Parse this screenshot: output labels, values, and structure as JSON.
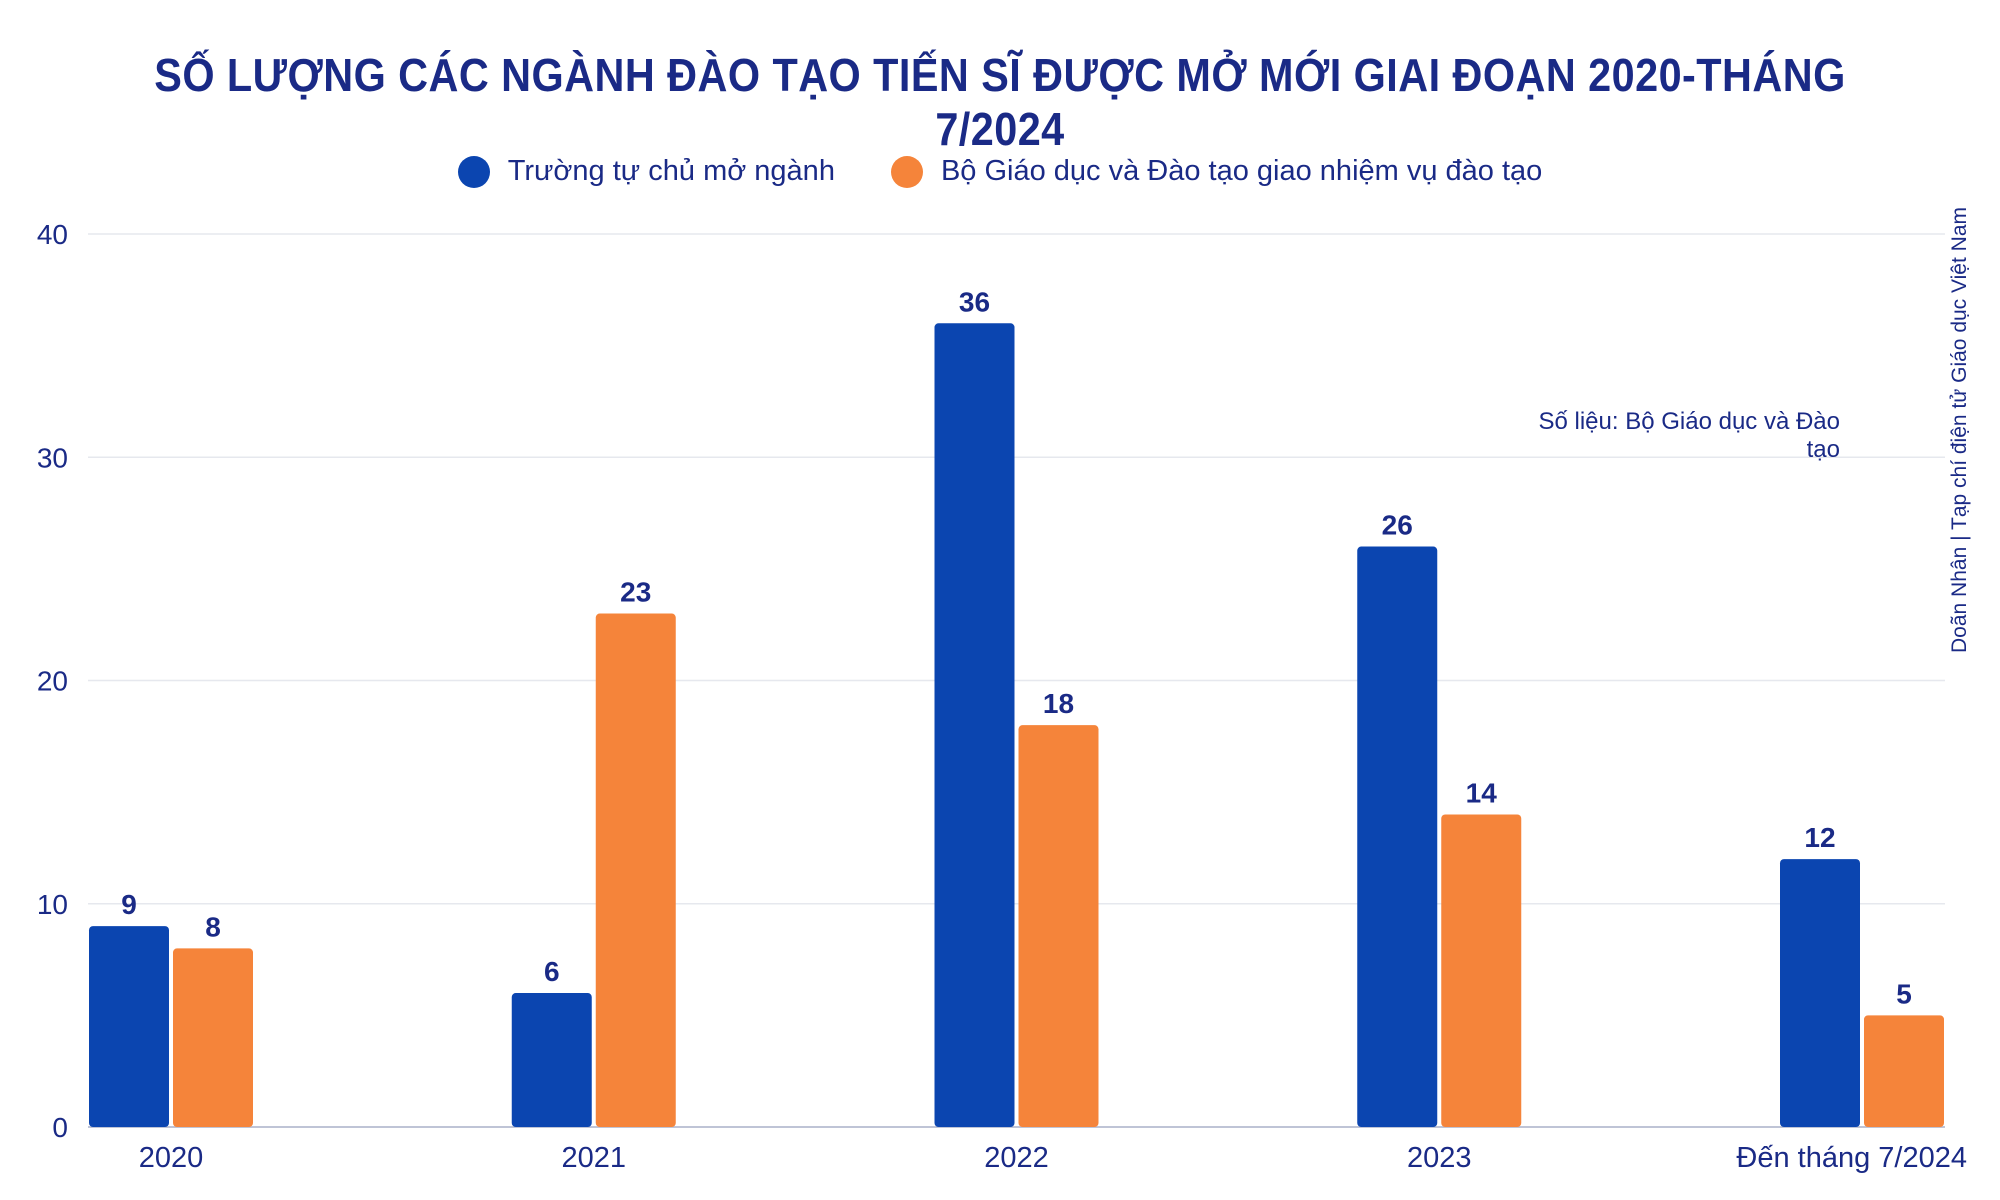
{
  "chart_data": {
    "type": "bar",
    "title": "SỐ LƯỢNG CÁC NGÀNH ĐÀO TẠO TIẾN SĨ ĐƯỢC MỞ MỚI GIAI ĐOẠN 2020-THÁNG 7/2024",
    "categories": [
      "2020",
      "2021",
      "2022",
      "2023",
      "Đến tháng 7/2024"
    ],
    "series": [
      {
        "name": "Trường tự chủ mở ngành",
        "color": "#0b45b0",
        "values": [
          9,
          6,
          36,
          26,
          12
        ]
      },
      {
        "name": "Bộ Giáo dục và Đào tạo giao nhiệm vụ đào tạo",
        "color": "#f5843a",
        "values": [
          8,
          23,
          18,
          14,
          5
        ]
      }
    ],
    "ylim": [
      0,
      40
    ],
    "yticks": [
      0,
      10,
      20,
      30,
      40
    ],
    "grid": true,
    "legend": "top-center",
    "source": "Số liệu: Bộ Giáo dục và Đào tạo",
    "credit": "Doãn Nhân | Tạp chí điện tử Giáo dục Việt Nam"
  }
}
